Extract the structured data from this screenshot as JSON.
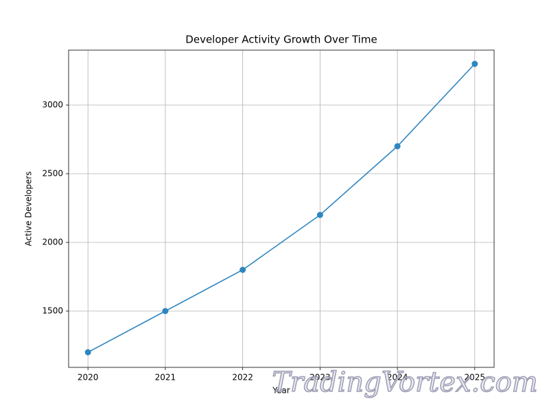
{
  "chart_data": {
    "type": "line",
    "title": "Developer Activity Growth Over Time",
    "xlabel": "Year",
    "ylabel": "Active Developers",
    "x": [
      2020,
      2021,
      2022,
      2023,
      2024,
      2025
    ],
    "series": [
      {
        "name": "Active Developers",
        "color": "#2e86c1",
        "values": [
          1200,
          1500,
          1800,
          2200,
          2700,
          3300
        ]
      }
    ],
    "xlim": [
      2019.75,
      2025.25
    ],
    "xticks": [
      2020,
      2021,
      2022,
      2023,
      2024,
      2025
    ],
    "ylim": [
      1090,
      3400
    ],
    "yticks": [
      1500,
      2000,
      2500,
      3000
    ],
    "grid": true
  },
  "watermark": "TradingVortex.com"
}
